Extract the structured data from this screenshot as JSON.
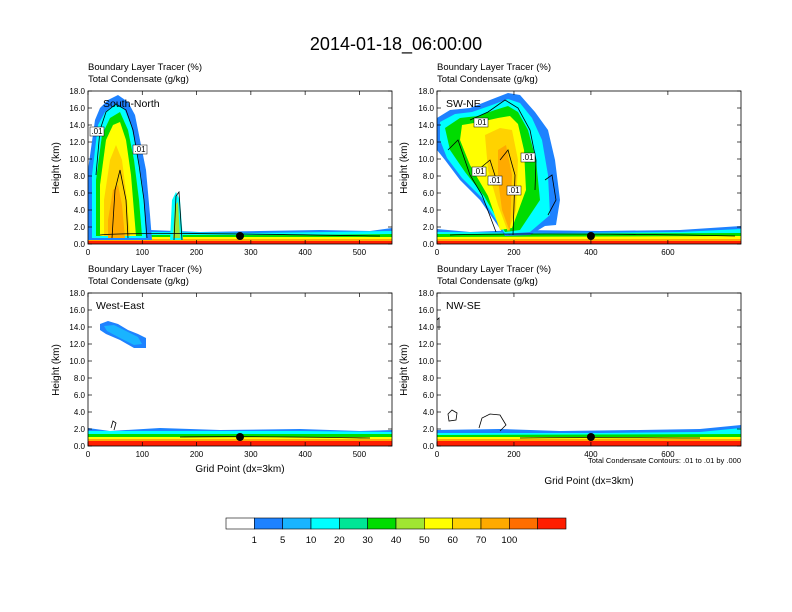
{
  "chart_data": {
    "type": "heatmap",
    "title": "2014-01-18_06:00:00",
    "subtitle_lines": [
      "Boundary Layer Tracer   (%)",
      "Total Condensate   (g/kg)"
    ],
    "ylabel": "Height (km)",
    "xlabel": "Grid Point (dx=3km)",
    "ylim": [
      0,
      18
    ],
    "y_ticks": [
      "0.0",
      "2.0",
      "4.0",
      "6.0",
      "8.0",
      "10.0",
      "12.0",
      "14.0",
      "16.0",
      "18.0"
    ],
    "contour_note": "Total Condensate Contours: .01 to .01 by .000",
    "colorbar": {
      "levels": [
        "1",
        "5",
        "10",
        "20",
        "30",
        "40",
        "50",
        "60",
        "70",
        "100"
      ],
      "colors": [
        "#ffffff",
        "#1e82ff",
        "#19b4ff",
        "#00ffff",
        "#00e696",
        "#00dc00",
        "#a0e632",
        "#ffff00",
        "#ffd200",
        "#ffaa00",
        "#ff6e00",
        "#ff1e00"
      ]
    },
    "panels": [
      {
        "name": "South-North",
        "xlim": [
          0,
          560
        ],
        "x_ticks": [
          0,
          100,
          200,
          300,
          400,
          500
        ],
        "marker_x": 280,
        "contour_labels": [
          ".01",
          ".01"
        ]
      },
      {
        "name": "SW-NE",
        "xlim": [
          0,
          790
        ],
        "x_ticks": [
          0,
          200,
          400,
          600
        ],
        "marker_x": 400,
        "contour_labels": [
          ".01",
          ".01",
          ".01",
          ".01",
          ".01"
        ]
      },
      {
        "name": "West-East",
        "xlim": [
          0,
          560
        ],
        "x_ticks": [
          0,
          100,
          200,
          300,
          400,
          500
        ],
        "marker_x": 280,
        "contour_labels": []
      },
      {
        "name": "NW-SE",
        "xlim": [
          0,
          790
        ],
        "x_ticks": [
          0,
          200,
          400,
          600
        ],
        "marker_x": 400,
        "contour_labels": []
      }
    ]
  }
}
